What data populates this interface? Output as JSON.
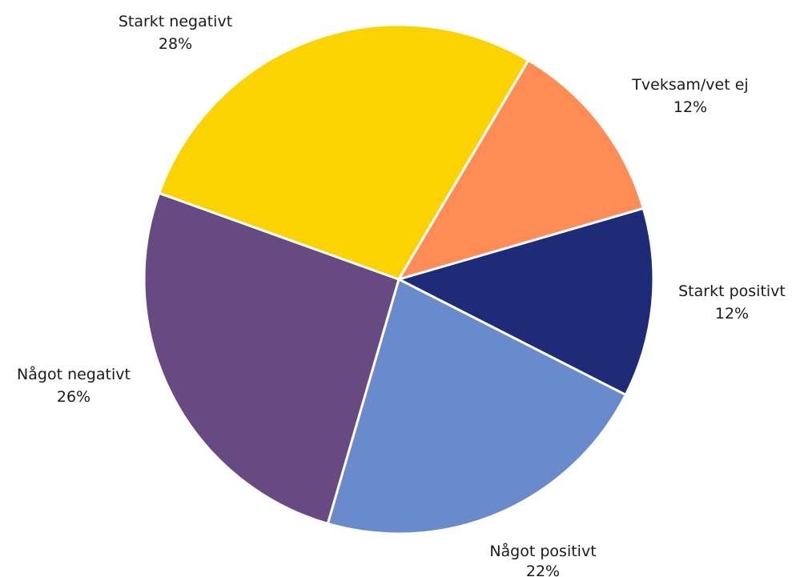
{
  "chart_data": {
    "type": "pie",
    "title": "",
    "slices": [
      {
        "label": "Starkt positivt",
        "value": 12,
        "value_label": "12%",
        "color": "#1d2b79"
      },
      {
        "label": "Något positivt",
        "value": 22,
        "value_label": "22%",
        "color": "#6a8bcb"
      },
      {
        "label": "Något negativt",
        "value": 26,
        "value_label": "26%",
        "color": "#674a82"
      },
      {
        "label": "Starkt negativt",
        "value": 28,
        "value_label": "28%",
        "color": "#fbd300"
      },
      {
        "label": "Tveksam/vet ej",
        "value": 12,
        "value_label": "12%",
        "color": "#ff8c55"
      }
    ]
  }
}
